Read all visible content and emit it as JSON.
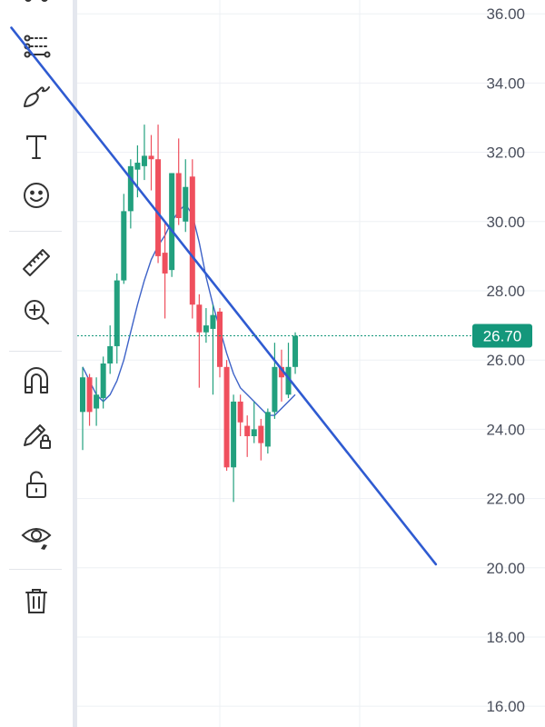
{
  "toolbar": {
    "tools": [
      {
        "name": "pattern-icon",
        "label": "Patterns"
      },
      {
        "name": "prediction-measurement-icon",
        "label": "Prediction and measurement"
      },
      {
        "name": "brush-icon",
        "label": "Brush"
      },
      {
        "name": "text-icon",
        "label": "Text"
      },
      {
        "name": "emoji-icon",
        "label": "Emoji"
      },
      {
        "name": "ruler-icon",
        "label": "Measure"
      },
      {
        "name": "zoom-in-icon",
        "label": "Zoom in"
      },
      {
        "name": "magnet-icon",
        "label": "Magnet mode"
      },
      {
        "name": "lock-drawing-icon",
        "label": "Lock drawings"
      },
      {
        "name": "unlock-icon",
        "label": "Unlock"
      },
      {
        "name": "hide-drawings-icon",
        "label": "Hide drawings"
      },
      {
        "name": "trash-icon",
        "label": "Remove drawings"
      }
    ]
  },
  "colors": {
    "up": "#22a07e",
    "down": "#ef4f5d",
    "moving_average": "#3e63c8",
    "trendline": "#2f5bd1",
    "grid": "#eef0f4",
    "axis_text": "#4a4f5c",
    "price_badge": "#14977b"
  },
  "chart_data": {
    "type": "candlestick",
    "title": "",
    "xlabel": "",
    "ylabel": "",
    "ylim": [
      15.4,
      36.4
    ],
    "y_ticks": [
      "36.00",
      "34.00",
      "32.00",
      "30.00",
      "28.00",
      "26.00",
      "24.00",
      "22.00",
      "20.00",
      "18.00",
      "16.00"
    ],
    "grid": true,
    "last_price": "26.70",
    "last_price_value": 26.7,
    "candles": [
      {
        "o": 24.5,
        "h": 25.8,
        "l": 23.4,
        "c": 25.5
      },
      {
        "o": 25.5,
        "h": 25.6,
        "l": 24.1,
        "c": 24.5
      },
      {
        "o": 24.6,
        "h": 25.5,
        "l": 24.1,
        "c": 25.0
      },
      {
        "o": 24.9,
        "h": 26.1,
        "l": 24.6,
        "c": 25.9
      },
      {
        "o": 25.9,
        "h": 27.0,
        "l": 25.6,
        "c": 26.4
      },
      {
        "o": 26.4,
        "h": 28.5,
        "l": 25.9,
        "c": 28.3
      },
      {
        "o": 28.3,
        "h": 30.8,
        "l": 28.2,
        "c": 30.3
      },
      {
        "o": 30.3,
        "h": 31.8,
        "l": 29.8,
        "c": 31.6
      },
      {
        "o": 31.5,
        "h": 32.2,
        "l": 30.7,
        "c": 31.7
      },
      {
        "o": 31.6,
        "h": 32.8,
        "l": 31.2,
        "c": 31.9
      },
      {
        "o": 31.9,
        "h": 32.5,
        "l": 30.9,
        "c": 31.8
      },
      {
        "o": 31.8,
        "h": 32.8,
        "l": 28.8,
        "c": 29.0
      },
      {
        "o": 29.1,
        "h": 30.0,
        "l": 27.2,
        "c": 28.5
      },
      {
        "o": 28.6,
        "h": 31.4,
        "l": 28.4,
        "c": 31.4
      },
      {
        "o": 31.4,
        "h": 32.4,
        "l": 29.9,
        "c": 30.1
      },
      {
        "o": 30.0,
        "h": 31.8,
        "l": 29.7,
        "c": 31.0
      },
      {
        "o": 31.3,
        "h": 31.8,
        "l": 27.2,
        "c": 27.6
      },
      {
        "o": 27.6,
        "h": 27.9,
        "l": 25.2,
        "c": 26.8
      },
      {
        "o": 26.8,
        "h": 27.5,
        "l": 26.5,
        "c": 27.0
      },
      {
        "o": 26.9,
        "h": 27.6,
        "l": 25.0,
        "c": 27.3
      },
      {
        "o": 27.4,
        "h": 27.5,
        "l": 25.5,
        "c": 25.8
      },
      {
        "o": 25.8,
        "h": 26.0,
        "l": 22.8,
        "c": 22.9
      },
      {
        "o": 22.9,
        "h": 25.0,
        "l": 21.9,
        "c": 24.8
      },
      {
        "o": 24.8,
        "h": 25.0,
        "l": 23.8,
        "c": 24.2
      },
      {
        "o": 24.1,
        "h": 24.4,
        "l": 23.2,
        "c": 23.8
      },
      {
        "o": 23.8,
        "h": 24.8,
        "l": 23.6,
        "c": 24.0
      },
      {
        "o": 24.1,
        "h": 24.3,
        "l": 23.1,
        "c": 23.6
      },
      {
        "o": 23.5,
        "h": 24.6,
        "l": 23.3,
        "c": 24.5
      },
      {
        "o": 24.5,
        "h": 26.5,
        "l": 24.3,
        "c": 25.8
      },
      {
        "o": 25.8,
        "h": 26.3,
        "l": 24.8,
        "c": 25.5
      },
      {
        "o": 25.0,
        "h": 26.5,
        "l": 24.9,
        "c": 25.8
      },
      {
        "o": 25.8,
        "h": 26.8,
        "l": 25.6,
        "c": 26.7
      }
    ],
    "moving_average": [
      25.8,
      25.4,
      25.0,
      24.8,
      25.0,
      25.4,
      26.0,
      26.8,
      27.6,
      28.3,
      28.9,
      29.3,
      29.6,
      30.0,
      30.3,
      30.5,
      30.2,
      29.4,
      28.4,
      27.6,
      26.9,
      26.2,
      25.6,
      25.2,
      25.0,
      24.8,
      24.6,
      24.4,
      24.4,
      24.6,
      24.8,
      25.0
    ],
    "trendline": {
      "x_start": -10.4,
      "y_start": 35.6,
      "x_end": 51.5,
      "y_end": 20.1
    }
  }
}
